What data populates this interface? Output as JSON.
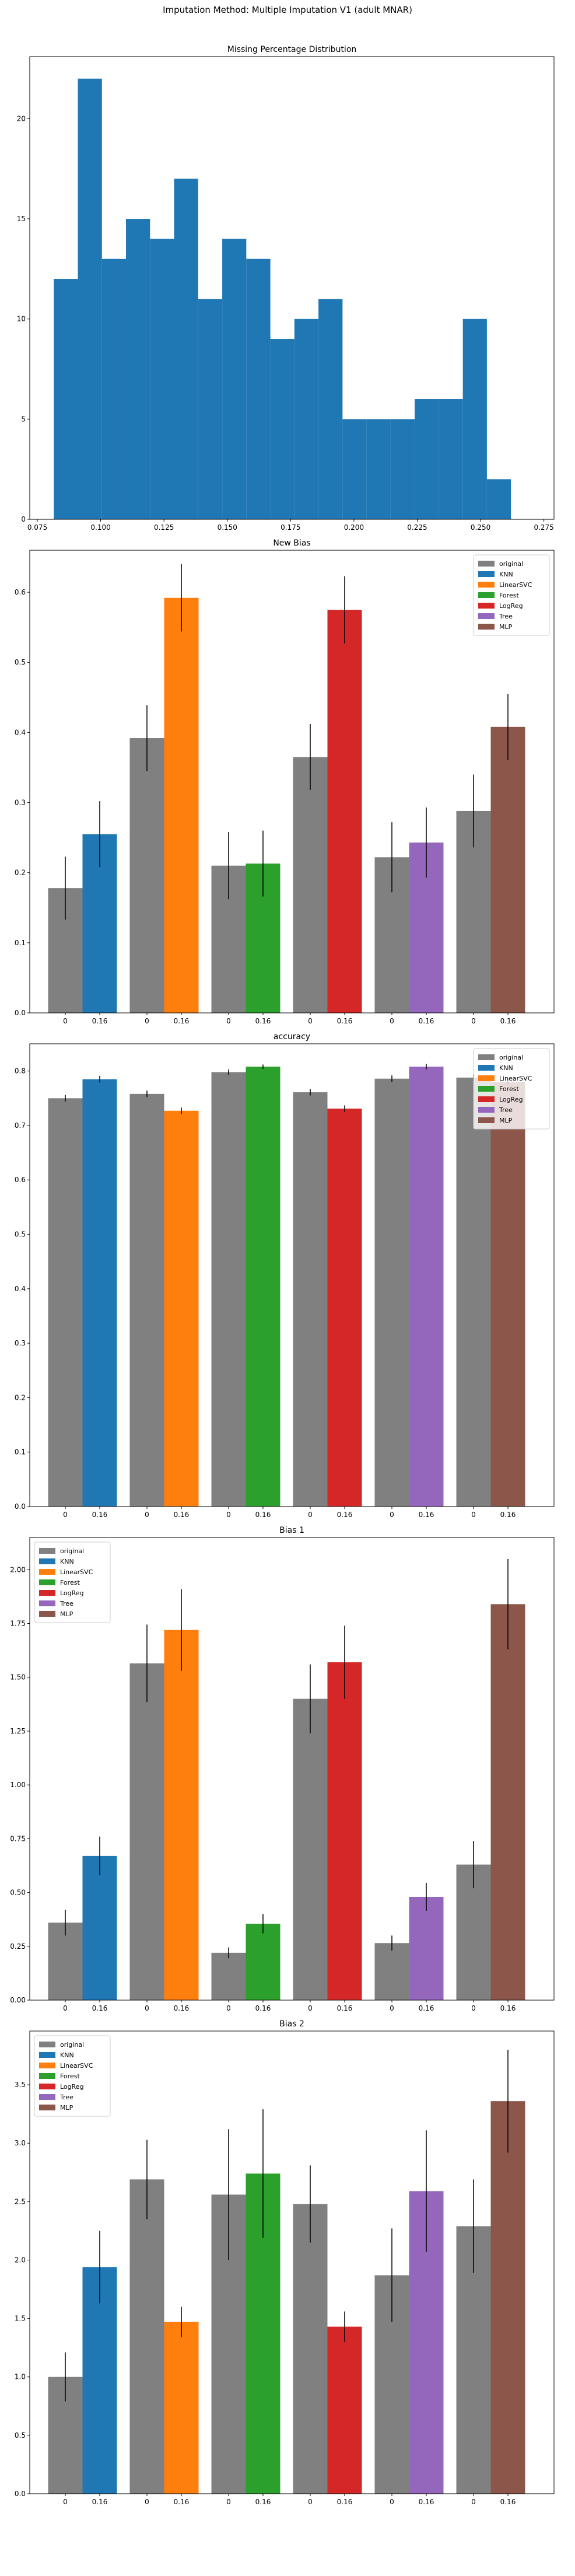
{
  "figure": {
    "suptitle": "Imputation Method: Multiple Imputation V1 (adult MNAR)"
  },
  "colors": {
    "original": "#808080",
    "KNN": "#1f77b4",
    "LinearSVC": "#ff7f0e",
    "Forest": "#2ca02c",
    "LogReg": "#d62728",
    "Tree": "#9467bd",
    "MLP": "#8c564b",
    "hist": "#1f77b4"
  },
  "chart_data": [
    {
      "type": "histogram",
      "title": "Missing Percentage Distribution",
      "xlabel": "",
      "ylabel": "",
      "xlim": [
        0.072,
        0.279
      ],
      "ylim": [
        0,
        23.1
      ],
      "xticks": [
        0.075,
        0.1,
        0.125,
        0.15,
        0.175,
        0.2,
        0.225,
        0.25,
        0.275
      ],
      "xtick_labels": [
        "0.075",
        "0.100",
        "0.125",
        "0.150",
        "0.175",
        "0.200",
        "0.225",
        "0.250",
        "0.275"
      ],
      "yticks": [
        0,
        5,
        10,
        15,
        20
      ],
      "ytick_labels": [
        "0",
        "5",
        "10",
        "15",
        "20"
      ],
      "bin_edges": [
        0.0815,
        0.091,
        0.1005,
        0.11,
        0.1195,
        0.129,
        0.1385,
        0.148,
        0.1575,
        0.167,
        0.1765,
        0.186,
        0.1955,
        0.205,
        0.2145,
        0.224,
        0.2335,
        0.243,
        0.2525,
        0.262,
        0.2715
      ],
      "counts": [
        12,
        22,
        13,
        15,
        14,
        17,
        11,
        14,
        13,
        9,
        10,
        11,
        5,
        5,
        5,
        6,
        6,
        10,
        2,
        0
      ]
    },
    {
      "type": "bar",
      "title": "New Bias",
      "ylim": [
        0,
        0.66
      ],
      "yticks": [
        0.0,
        0.1,
        0.2,
        0.3,
        0.4,
        0.5,
        0.6
      ],
      "ytick_labels": [
        "0.0",
        "0.1",
        "0.2",
        "0.3",
        "0.4",
        "0.5",
        "0.6"
      ],
      "xtick_labels": [
        "0",
        "0.16",
        "0",
        "0.16",
        "0",
        "0.16",
        "0",
        "0.16",
        "0",
        "0.16",
        "0",
        "0.16"
      ],
      "legend_position": "top-right",
      "legend": [
        "original",
        "KNN",
        "LinearSVC",
        "Forest",
        "LogReg",
        "Tree",
        "MLP"
      ],
      "groups": [
        {
          "model": "KNN",
          "original": 0.178,
          "original_err": 0.045,
          "value": 0.255,
          "value_err": 0.047
        },
        {
          "model": "LinearSVC",
          "original": 0.392,
          "original_err": 0.047,
          "value": 0.592,
          "value_err": 0.048
        },
        {
          "model": "Forest",
          "original": 0.21,
          "original_err": 0.048,
          "value": 0.213,
          "value_err": 0.047
        },
        {
          "model": "LogReg",
          "original": 0.365,
          "original_err": 0.047,
          "value": 0.575,
          "value_err": 0.048
        },
        {
          "model": "Tree",
          "original": 0.222,
          "original_err": 0.05,
          "value": 0.243,
          "value_err": 0.05
        },
        {
          "model": "MLP",
          "original": 0.288,
          "original_err": 0.052,
          "value": 0.408,
          "value_err": 0.047
        }
      ]
    },
    {
      "type": "bar",
      "title": "accuracy",
      "ylim": [
        0,
        0.85
      ],
      "yticks": [
        0.0,
        0.1,
        0.2,
        0.3,
        0.4,
        0.5,
        0.6,
        0.7,
        0.8
      ],
      "ytick_labels": [
        "0.0",
        "0.1",
        "0.2",
        "0.3",
        "0.4",
        "0.5",
        "0.6",
        "0.7",
        "0.8"
      ],
      "xtick_labels": [
        "0",
        "0.16",
        "0",
        "0.16",
        "0",
        "0.16",
        "0",
        "0.16",
        "0",
        "0.16",
        "0",
        "0.16"
      ],
      "legend_position": "top-right",
      "legend": [
        "original",
        "KNN",
        "LinearSVC",
        "Forest",
        "LogReg",
        "Tree",
        "MLP"
      ],
      "groups": [
        {
          "model": "KNN",
          "original": 0.75,
          "original_err": 0.006,
          "value": 0.785,
          "value_err": 0.006
        },
        {
          "model": "LinearSVC",
          "original": 0.758,
          "original_err": 0.006,
          "value": 0.727,
          "value_err": 0.006
        },
        {
          "model": "Forest",
          "original": 0.798,
          "original_err": 0.005,
          "value": 0.808,
          "value_err": 0.004
        },
        {
          "model": "LogReg",
          "original": 0.761,
          "original_err": 0.006,
          "value": 0.731,
          "value_err": 0.006
        },
        {
          "model": "Tree",
          "original": 0.786,
          "original_err": 0.006,
          "value": 0.808,
          "value_err": 0.005
        },
        {
          "model": "MLP",
          "original": 0.788,
          "original_err": 0.006,
          "value": 0.78,
          "value_err": 0.006
        }
      ]
    },
    {
      "type": "bar",
      "title": "Bias 1",
      "ylim": [
        0,
        2.15
      ],
      "yticks": [
        0.0,
        0.25,
        0.5,
        0.75,
        1.0,
        1.25,
        1.5,
        1.75,
        2.0
      ],
      "ytick_labels": [
        "0.00",
        "0.25",
        "0.50",
        "0.75",
        "1.00",
        "1.25",
        "1.50",
        "1.75",
        "2.00"
      ],
      "xtick_labels": [
        "0",
        "0.16",
        "0",
        "0.16",
        "0",
        "0.16",
        "0",
        "0.16",
        "0",
        "0.16",
        "0",
        "0.16"
      ],
      "legend_position": "top-left",
      "legend": [
        "original",
        "KNN",
        "LinearSVC",
        "Forest",
        "LogReg",
        "Tree",
        "MLP"
      ],
      "groups": [
        {
          "model": "KNN",
          "original": 0.36,
          "original_err": 0.06,
          "value": 0.67,
          "value_err": 0.09
        },
        {
          "model": "LinearSVC",
          "original": 1.565,
          "original_err": 0.18,
          "value": 1.72,
          "value_err": 0.19
        },
        {
          "model": "Forest",
          "original": 0.22,
          "original_err": 0.025,
          "value": 0.355,
          "value_err": 0.045
        },
        {
          "model": "LogReg",
          "original": 1.4,
          "original_err": 0.16,
          "value": 1.57,
          "value_err": 0.17
        },
        {
          "model": "Tree",
          "original": 0.265,
          "original_err": 0.035,
          "value": 0.48,
          "value_err": 0.065
        },
        {
          "model": "MLP",
          "original": 0.63,
          "original_err": 0.11,
          "value": 1.84,
          "value_err": 0.21
        }
      ]
    },
    {
      "type": "bar",
      "title": "Bias 2",
      "ylim": [
        0,
        3.96
      ],
      "yticks": [
        0.0,
        0.5,
        1.0,
        1.5,
        2.0,
        2.5,
        3.0,
        3.5
      ],
      "ytick_labels": [
        "0.0",
        "0.5",
        "1.0",
        "1.5",
        "2.0",
        "2.5",
        "3.0",
        "3.5"
      ],
      "xtick_labels": [
        "0",
        "0.16",
        "0",
        "0.16",
        "0",
        "0.16",
        "0",
        "0.16",
        "0",
        "0.16",
        "0",
        "0.16"
      ],
      "legend_position": "top-left",
      "legend": [
        "original",
        "KNN",
        "LinearSVC",
        "Forest",
        "LogReg",
        "Tree",
        "MLP"
      ],
      "groups": [
        {
          "model": "KNN",
          "original": 1.0,
          "original_err": 0.21,
          "value": 1.94,
          "value_err": 0.31
        },
        {
          "model": "LinearSVC",
          "original": 2.69,
          "original_err": 0.34,
          "value": 1.47,
          "value_err": 0.13
        },
        {
          "model": "Forest",
          "original": 2.56,
          "original_err": 0.56,
          "value": 2.74,
          "value_err": 0.55
        },
        {
          "model": "LogReg",
          "original": 2.48,
          "original_err": 0.33,
          "value": 1.43,
          "value_err": 0.13
        },
        {
          "model": "Tree",
          "original": 1.87,
          "original_err": 0.4,
          "value": 2.59,
          "value_err": 0.52
        },
        {
          "model": "MLP",
          "original": 2.29,
          "original_err": 0.4,
          "value": 3.36,
          "value_err": 0.44
        }
      ]
    }
  ]
}
